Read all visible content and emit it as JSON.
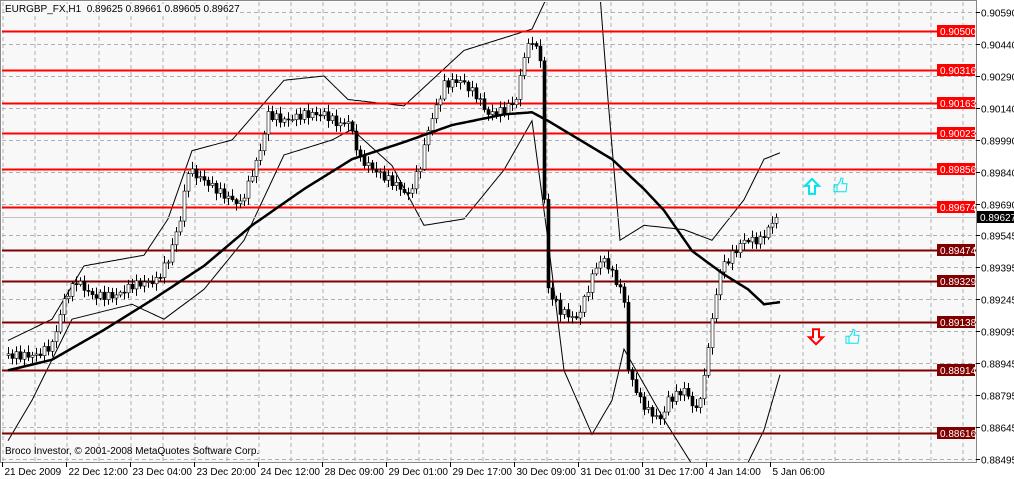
{
  "header": {
    "symbol": "EURGBP_FX,H1",
    "ohlc": "0.89625 0.89661 0.89605 0.89627"
  },
  "footer": {
    "copyright": "Broco Investor, © 2001-2008 MetaQuotes Software Corp."
  },
  "colors": {
    "background": "#f8f8f8",
    "grid": "#b0b0b0",
    "level_bright": "#ff0000",
    "level_dark": "#800000",
    "bull_arrow": "#00e5ee",
    "bear_arrow": "#ff0000",
    "thumb": "#00e5ee"
  },
  "chart_data": {
    "type": "candlestick",
    "timeframe": "H1",
    "ylim": [
      0.8844,
      0.9065
    ],
    "grid": true,
    "y_ticks": [
      "0.90590",
      "0.90440",
      "0.90290",
      "0.90140",
      "0.89990",
      "0.89840",
      "0.89690",
      "0.89545",
      "0.89395",
      "0.89245",
      "0.89095",
      "0.88945",
      "0.88795",
      "0.88645",
      "0.88495"
    ],
    "x_ticks": [
      {
        "bar": 0,
        "label": "21 Dec 2009"
      },
      {
        "bar": 16,
        "label": "22 Dec 12:00"
      },
      {
        "bar": 32,
        "label": "23 Dec 04:00"
      },
      {
        "bar": 48,
        "label": "23 Dec 20:00"
      },
      {
        "bar": 64,
        "label": "24 Dec 12:00"
      },
      {
        "bar": 80,
        "label": "28 Dec 09:00"
      },
      {
        "bar": 96,
        "label": "29 Dec 01:00"
      },
      {
        "bar": 112,
        "label": "29 Dec 17:00"
      },
      {
        "bar": 128,
        "label": "30 Dec 09:00"
      },
      {
        "bar": 144,
        "label": "31 Dec 01:00"
      },
      {
        "bar": 160,
        "label": "31 Dec 17:00"
      },
      {
        "bar": 176,
        "label": "4 Jan 14:00"
      },
      {
        "bar": 192,
        "label": "5 Jan 06:00"
      }
    ],
    "close_keyframes": [
      [
        1,
        0.8898
      ],
      [
        8,
        0.8898
      ],
      [
        12,
        0.8903
      ],
      [
        15,
        0.8924
      ],
      [
        18,
        0.8933
      ],
      [
        22,
        0.8926
      ],
      [
        28,
        0.8926
      ],
      [
        32,
        0.8931
      ],
      [
        38,
        0.8933
      ],
      [
        41,
        0.8943
      ],
      [
        44,
        0.8962
      ],
      [
        46,
        0.8985
      ],
      [
        50,
        0.898
      ],
      [
        55,
        0.8973
      ],
      [
        59,
        0.8969
      ],
      [
        61,
        0.8978
      ],
      [
        64,
        0.8994
      ],
      [
        66,
        0.9011
      ],
      [
        70,
        0.9008
      ],
      [
        75,
        0.9011
      ],
      [
        80,
        0.9011
      ],
      [
        84,
        0.9006
      ],
      [
        86,
        0.9008
      ],
      [
        89,
        0.899
      ],
      [
        94,
        0.8983
      ],
      [
        98,
        0.8978
      ],
      [
        101,
        0.8973
      ],
      [
        104,
        0.8987
      ],
      [
        106,
        0.9004
      ],
      [
        110,
        0.9025
      ],
      [
        114,
        0.9027
      ],
      [
        118,
        0.902
      ],
      [
        121,
        0.9011
      ],
      [
        125,
        0.9013
      ],
      [
        128,
        0.9018
      ],
      [
        130,
        0.9039
      ],
      [
        132,
        0.9046
      ],
      [
        134,
        0.9037
      ],
      [
        135,
        0.8971
      ],
      [
        136,
        0.8929
      ],
      [
        139,
        0.8919
      ],
      [
        143,
        0.8915
      ],
      [
        145,
        0.8924
      ],
      [
        148,
        0.894
      ],
      [
        150,
        0.8943
      ],
      [
        153,
        0.8933
      ],
      [
        155,
        0.8924
      ],
      [
        156,
        0.8891
      ],
      [
        159,
        0.8877
      ],
      [
        161,
        0.8872
      ],
      [
        164,
        0.8868
      ],
      [
        166,
        0.8877
      ],
      [
        170,
        0.8882
      ],
      [
        173,
        0.8872
      ],
      [
        175,
        0.8887
      ],
      [
        176,
        0.8903
      ],
      [
        179,
        0.8938
      ],
      [
        181,
        0.8943
      ],
      [
        185,
        0.8952
      ],
      [
        189,
        0.8952
      ],
      [
        193,
        0.89627
      ]
    ],
    "moving_average": [
      [
        1,
        0.8891
      ],
      [
        12,
        0.8896
      ],
      [
        25,
        0.891
      ],
      [
        37,
        0.8924
      ],
      [
        50,
        0.894
      ],
      [
        62,
        0.8959
      ],
      [
        75,
        0.8976
      ],
      [
        87,
        0.899
      ],
      [
        100,
        0.8998
      ],
      [
        112,
        0.9006
      ],
      [
        125,
        0.9011
      ],
      [
        132,
        0.9012
      ],
      [
        136,
        0.9008
      ],
      [
        144,
        0.8999
      ],
      [
        152,
        0.899
      ],
      [
        160,
        0.8976
      ],
      [
        165,
        0.8966
      ],
      [
        172,
        0.8947
      ],
      [
        180,
        0.8936
      ],
      [
        186,
        0.8929
      ],
      [
        190,
        0.8922
      ],
      [
        194,
        0.8923
      ]
    ],
    "upper_band": [
      [
        1,
        0.8905
      ],
      [
        12,
        0.8915
      ],
      [
        20,
        0.894
      ],
      [
        35,
        0.8945
      ],
      [
        41,
        0.8962
      ],
      [
        47,
        0.8994
      ],
      [
        57,
        0.8999
      ],
      [
        70,
        0.9027
      ],
      [
        80,
        0.9029
      ],
      [
        86,
        0.9018
      ],
      [
        100,
        0.9015
      ],
      [
        115,
        0.9041
      ],
      [
        132,
        0.9051
      ],
      [
        136,
        0.9067
      ],
      [
        142,
        0.9093
      ],
      [
        149,
        0.9067
      ],
      [
        151,
        0.9018
      ],
      [
        154,
        0.8952
      ],
      [
        160,
        0.8959
      ],
      [
        170,
        0.8957
      ],
      [
        177,
        0.8952
      ],
      [
        185,
        0.8971
      ],
      [
        190,
        0.899
      ],
      [
        194,
        0.8993
      ]
    ],
    "lower_band": [
      [
        1,
        0.8858
      ],
      [
        7,
        0.8877
      ],
      [
        12,
        0.8896
      ],
      [
        17,
        0.8915
      ],
      [
        32,
        0.8922
      ],
      [
        40,
        0.8915
      ],
      [
        50,
        0.8929
      ],
      [
        60,
        0.8952
      ],
      [
        70,
        0.8992
      ],
      [
        82,
        0.8999
      ],
      [
        87,
        0.9004
      ],
      [
        97,
        0.8987
      ],
      [
        105,
        0.8959
      ],
      [
        115,
        0.8962
      ],
      [
        125,
        0.8985
      ],
      [
        132,
        0.9008
      ],
      [
        136,
        0.8952
      ],
      [
        140,
        0.8891
      ],
      [
        147,
        0.8861
      ],
      [
        152,
        0.8877
      ],
      [
        155,
        0.8901
      ],
      [
        165,
        0.8868
      ],
      [
        172,
        0.8847
      ],
      [
        185,
        0.8844
      ],
      [
        190,
        0.8863
      ],
      [
        194,
        0.8889
      ]
    ],
    "levels": [
      {
        "price": "0.90500",
        "style": "bright"
      },
      {
        "price": "0.90316",
        "style": "bright"
      },
      {
        "price": "0.90163",
        "style": "bright"
      },
      {
        "price": "0.90023",
        "style": "bright"
      },
      {
        "price": "0.89856",
        "style": "bright"
      },
      {
        "price": "0.89674",
        "style": "bright"
      },
      {
        "price": "0.89474",
        "style": "dark"
      },
      {
        "price": "0.89329",
        "style": "dark"
      },
      {
        "price": "0.89138",
        "style": "dark"
      },
      {
        "price": "0.88914",
        "style": "dark"
      },
      {
        "price": "0.88616",
        "style": "dark"
      }
    ],
    "current_price": "0.89627",
    "signals": [
      {
        "type": "up-arrow",
        "bar": 202,
        "price": 0.8977
      },
      {
        "type": "thumbs-up",
        "bar": 209,
        "price": 0.8978
      },
      {
        "type": "down-arrow",
        "bar": 203,
        "price": 0.8907
      },
      {
        "type": "thumbs-up",
        "bar": 212,
        "price": 0.8907
      }
    ]
  }
}
